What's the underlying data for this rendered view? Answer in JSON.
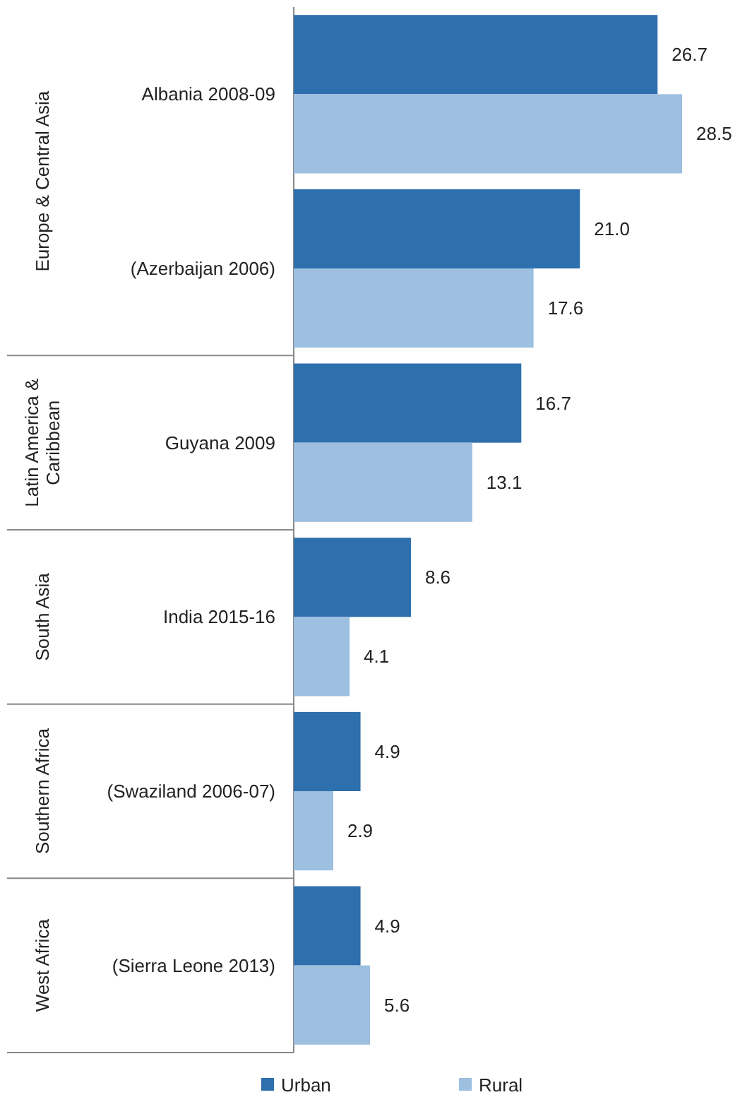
{
  "chart_data": {
    "type": "bar",
    "orientation": "horizontal",
    "categories": [
      "Albania 2008-09",
      "(Azerbaijan 2006)",
      "Guyana 2009",
      "India 2015-16",
      "(Swaziland 2006-07)",
      "(Sierra Leone 2013)"
    ],
    "series": [
      {
        "name": "Urban",
        "color": "#2e6fad",
        "values": [
          26.7,
          21.0,
          16.7,
          8.6,
          4.9,
          4.9
        ],
        "value_labels": [
          "26.7",
          "21.0",
          "16.7",
          "8.6",
          "4.9",
          "4.9"
        ]
      },
      {
        "name": "Rural",
        "color": "#9dbfe0",
        "values": [
          28.5,
          17.6,
          13.1,
          4.1,
          2.9,
          5.6
        ],
        "value_labels": [
          "28.5",
          "17.6",
          "13.1",
          "4.1",
          "2.9",
          "5.6"
        ]
      }
    ],
    "legend": "bottom",
    "annotations": [
      "Europe & Central Asia",
      "Latin America & Caribbean",
      "South Asia",
      "Southern Africa",
      "West Africa"
    ]
  }
}
